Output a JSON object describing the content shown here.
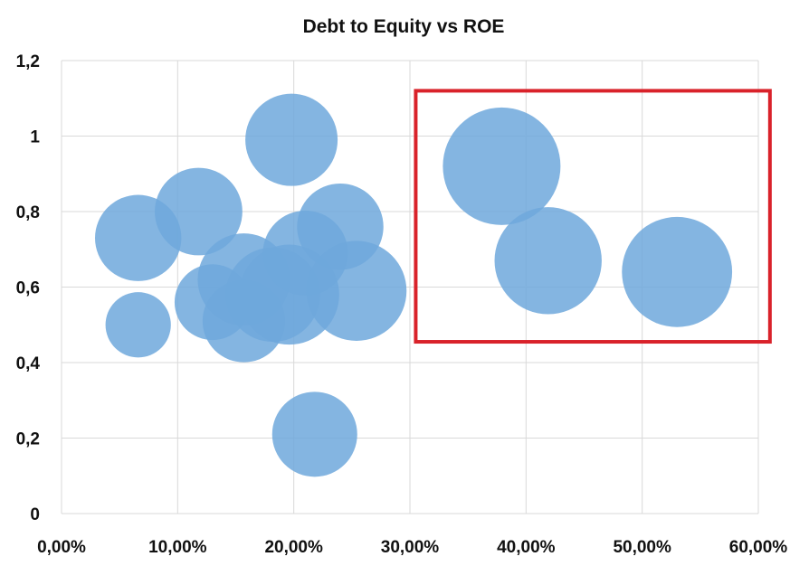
{
  "chart_data": {
    "type": "bubble",
    "title": "Debt to Equity vs ROE",
    "xlabel": "",
    "ylabel": "",
    "xlim": [
      0,
      0.6
    ],
    "ylim": [
      0,
      1.2
    ],
    "grid": true,
    "legend": "none",
    "x_ticks": [
      "0,00%",
      "10,00%",
      "20,00%",
      "30,00%",
      "40,00%",
      "50,00%",
      "60,00%"
    ],
    "y_ticks": [
      "0",
      "0,2",
      "0,4",
      "0,6",
      "0,8",
      "1",
      "1,2"
    ],
    "bubble_color": "#6fa8dc",
    "highlight_color": "#d9222a",
    "highlight_region": {
      "x": [
        0.305,
        0.61
      ],
      "y": [
        0.455,
        1.12
      ]
    },
    "points": [
      {
        "x": 0.066,
        "y": 0.5,
        "size": 0.2
      },
      {
        "x": 0.066,
        "y": 0.73,
        "size": 0.35
      },
      {
        "x": 0.118,
        "y": 0.8,
        "size": 0.36
      },
      {
        "x": 0.13,
        "y": 0.56,
        "size": 0.27
      },
      {
        "x": 0.157,
        "y": 0.51,
        "size": 0.32
      },
      {
        "x": 0.157,
        "y": 0.62,
        "size": 0.4
      },
      {
        "x": 0.182,
        "y": 0.58,
        "size": 0.42
      },
      {
        "x": 0.196,
        "y": 0.58,
        "size": 0.47
      },
      {
        "x": 0.198,
        "y": 0.99,
        "size": 0.4
      },
      {
        "x": 0.21,
        "y": 0.69,
        "size": 0.34
      },
      {
        "x": 0.218,
        "y": 0.21,
        "size": 0.34
      },
      {
        "x": 0.24,
        "y": 0.76,
        "size": 0.35
      },
      {
        "x": 0.254,
        "y": 0.59,
        "size": 0.47
      },
      {
        "x": 0.379,
        "y": 0.92,
        "size": 0.65
      },
      {
        "x": 0.419,
        "y": 0.67,
        "size": 0.54
      },
      {
        "x": 0.53,
        "y": 0.64,
        "size": 0.57
      }
    ]
  }
}
